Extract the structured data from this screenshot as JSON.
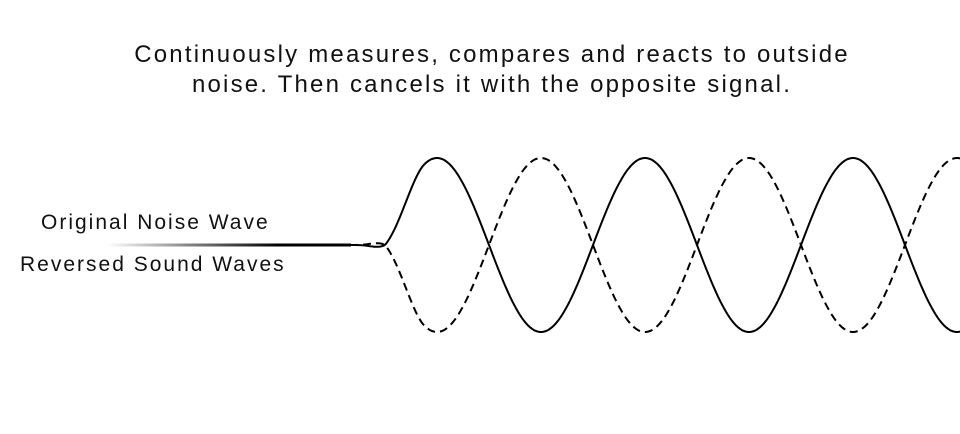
{
  "title": {
    "line1": "Continuously measures, compares and reacts to outside",
    "line2": "noise. Then cancels it with the opposite signal."
  },
  "labels": {
    "original": "Original Noise Wave",
    "reversed": "Reversed Sound Waves"
  },
  "waves": {
    "original_style": "solid",
    "reversed_style": "dashed",
    "color": "#000000"
  }
}
